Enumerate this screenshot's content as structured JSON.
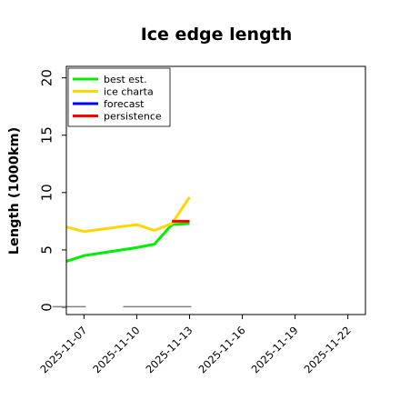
{
  "chart_data": {
    "type": "line",
    "title": "Ice edge length",
    "xlabel": "",
    "ylabel": "Length (1000km)",
    "ylim": [
      0,
      21
    ],
    "yticks": [
      0,
      5,
      10,
      15,
      20
    ],
    "xlim": [
      "2025-11-06",
      "2025-11-23"
    ],
    "xticks": [
      {
        "label": "2025-11-07",
        "date": "2025-11-07",
        "color": "#000000"
      },
      {
        "label": "2025-11-10",
        "date": "2025-11-10",
        "color": "#000000"
      },
      {
        "label": "2025-11-13",
        "date": "2025-11-13",
        "color": "#228b22"
      },
      {
        "label": "2025-11-16",
        "date": "2025-11-16",
        "color": "#000000"
      },
      {
        "label": "2025-11-19",
        "date": "2025-11-19",
        "color": "#000000"
      },
      {
        "label": "2025-11-22",
        "date": "2025-11-22",
        "color": "#000000"
      }
    ],
    "grid": false,
    "legend_position": "top-left",
    "series": [
      {
        "name": "best est.",
        "color": "#00ee00",
        "points": [
          [
            "2025-11-06",
            4.0
          ],
          [
            "2025-11-07",
            4.5
          ],
          [
            "2025-11-10",
            5.2
          ],
          [
            "2025-11-11",
            5.5
          ],
          [
            "2025-11-12",
            7.2
          ],
          [
            "2025-11-13",
            7.3
          ]
        ]
      },
      {
        "name": "ice charta",
        "color": "#ffd700",
        "points": [
          [
            "2025-11-06",
            7.0
          ],
          [
            "2025-11-07",
            6.6
          ],
          [
            "2025-11-10",
            7.2
          ],
          [
            "2025-11-11",
            6.7
          ],
          [
            "2025-11-12",
            7.3
          ],
          [
            "2025-11-13",
            9.6
          ]
        ]
      },
      {
        "name": "forecast",
        "color": "#0000ff",
        "points": []
      },
      {
        "name": "persistence",
        "color": "#ff0000",
        "points": [
          [
            "2025-11-12",
            7.5
          ],
          [
            "2025-11-13",
            7.5
          ]
        ]
      }
    ],
    "gray_segments": [
      {
        "color": "#808080",
        "y": 0.05,
        "from": "2025-11-06",
        "to": "2025-11-07"
      },
      {
        "color": "#808080",
        "y": 0.05,
        "from": "2025-11-10",
        "to": "2025-11-13"
      }
    ]
  }
}
